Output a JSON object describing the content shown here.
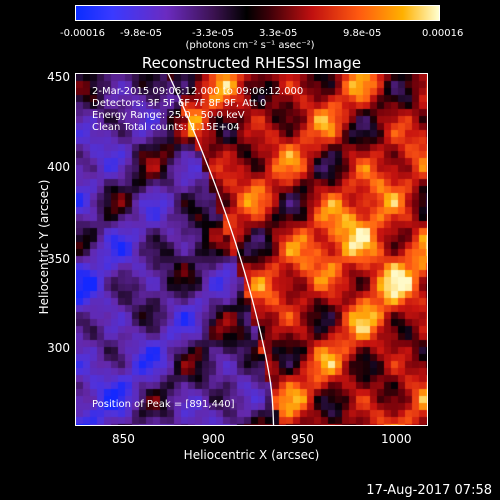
{
  "colorbar": {
    "ticks": [
      "-0.00016",
      "-9.8e-05",
      "-3.3e-05",
      "3.3e-05",
      "9.8e-05",
      "0.00016"
    ],
    "units": "(photons cm⁻² s⁻¹ asec⁻²)"
  },
  "plot": {
    "title": "Reconstructed RHESSI Image",
    "annotations": [
      " 2-Mar-2015 09:06:12.000 to 09:06:12.000",
      "Detectors: 3F 5F 6F 7F 8F 9F, Att 0",
      "Energy Range: 25.0 - 50.0 keV",
      "Clean     Total counts: 1.15E+04"
    ],
    "peak": "Position of Peak = [891,440]",
    "xlabel": "Heliocentric X (arcsec)",
    "ylabel": "Heliocentric Y (arcsec)",
    "xticks": [
      "850",
      "900",
      "950",
      "1000"
    ],
    "yticks": [
      "450",
      "400",
      "350",
      "300"
    ]
  },
  "footer": {
    "timestamp": "17-Aug-2017 07:58"
  }
}
